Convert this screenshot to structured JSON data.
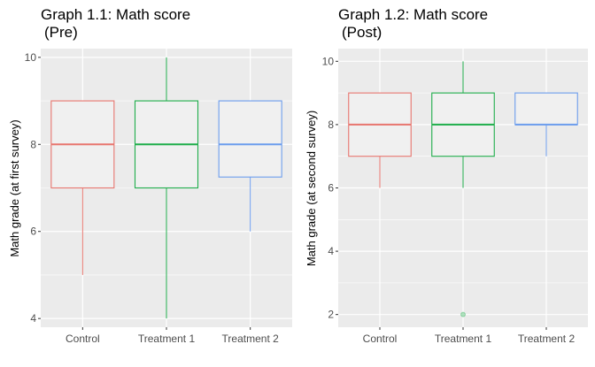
{
  "chart_data": [
    {
      "type": "boxplot",
      "title_line1": "Graph 1.1: Math score",
      "title_line2": "(Pre)",
      "xlabel": "",
      "ylabel": "Math grade (at first survey)",
      "categories": [
        "Control",
        "Treatment 1",
        "Treatment 2"
      ],
      "colors": [
        "#e8766f",
        "#1fae4b",
        "#6c9ded"
      ],
      "ylim": [
        3.8,
        10.2
      ],
      "yticks": [
        "4",
        "6",
        "8",
        "10"
      ],
      "grid": true,
      "boxes": [
        {
          "min": 5,
          "q1": 7,
          "median": 8,
          "q3": 9,
          "max": 9,
          "outliers": []
        },
        {
          "min": 4,
          "q1": 7,
          "median": 8,
          "q3": 9,
          "max": 10,
          "outliers": []
        },
        {
          "min": 6,
          "q1": 7.25,
          "median": 8,
          "q3": 9,
          "max": 9,
          "outliers": []
        }
      ]
    },
    {
      "type": "boxplot",
      "title_line1": "Graph 1.2: Math score",
      "title_line2": "(Post)",
      "xlabel": "",
      "ylabel": "Math grade (at second survey)",
      "categories": [
        "Control",
        "Treatment 1",
        "Treatment 2"
      ],
      "colors": [
        "#e8766f",
        "#1fae4b",
        "#6c9ded"
      ],
      "ylim": [
        1.6,
        10.4
      ],
      "yticks": [
        "2",
        "4",
        "6",
        "8",
        "10"
      ],
      "grid": true,
      "boxes": [
        {
          "min": 6,
          "q1": 7,
          "median": 8,
          "q3": 9,
          "max": 9,
          "outliers": []
        },
        {
          "min": 6,
          "q1": 7,
          "median": 8,
          "q3": 9,
          "max": 10,
          "outliers": [
            2
          ]
        },
        {
          "min": 7,
          "q1": 8,
          "median": 8,
          "q3": 9,
          "max": 9,
          "outliers": []
        }
      ]
    }
  ]
}
